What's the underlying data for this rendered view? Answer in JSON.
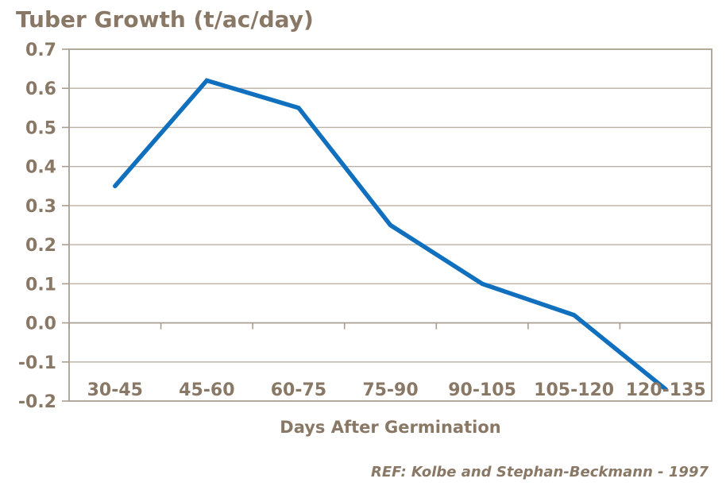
{
  "page": {
    "background": "#ffffff"
  },
  "colors": {
    "text": "#8a7866",
    "line": "#1170bd",
    "gridline": "#bab0a4",
    "border": "#b2a89b",
    "axis": "#a89e90"
  },
  "chart_data": {
    "type": "line",
    "title": "Tuber Growth (t/ac/day)",
    "xlabel": "Days After Germination",
    "categories": [
      "30-45",
      "45-60",
      "60-75",
      "75-90",
      "90-105",
      "105-120",
      "120-135"
    ],
    "values": [
      0.35,
      0.62,
      0.55,
      0.25,
      0.1,
      0.02,
      -0.17
    ],
    "ylim": [
      -0.2,
      0.7
    ],
    "ytick_step": 0.1,
    "ytick_labels": [
      "0.7",
      "0.6",
      "0.5",
      "0.4",
      "0.3",
      "0.2",
      "0.1",
      "0.0",
      "-0.1",
      "-0.2"
    ],
    "grid": true,
    "legend": false
  },
  "footer": {
    "reference": "REF: Kolbe and Stephan-Beckmann - 1997"
  }
}
